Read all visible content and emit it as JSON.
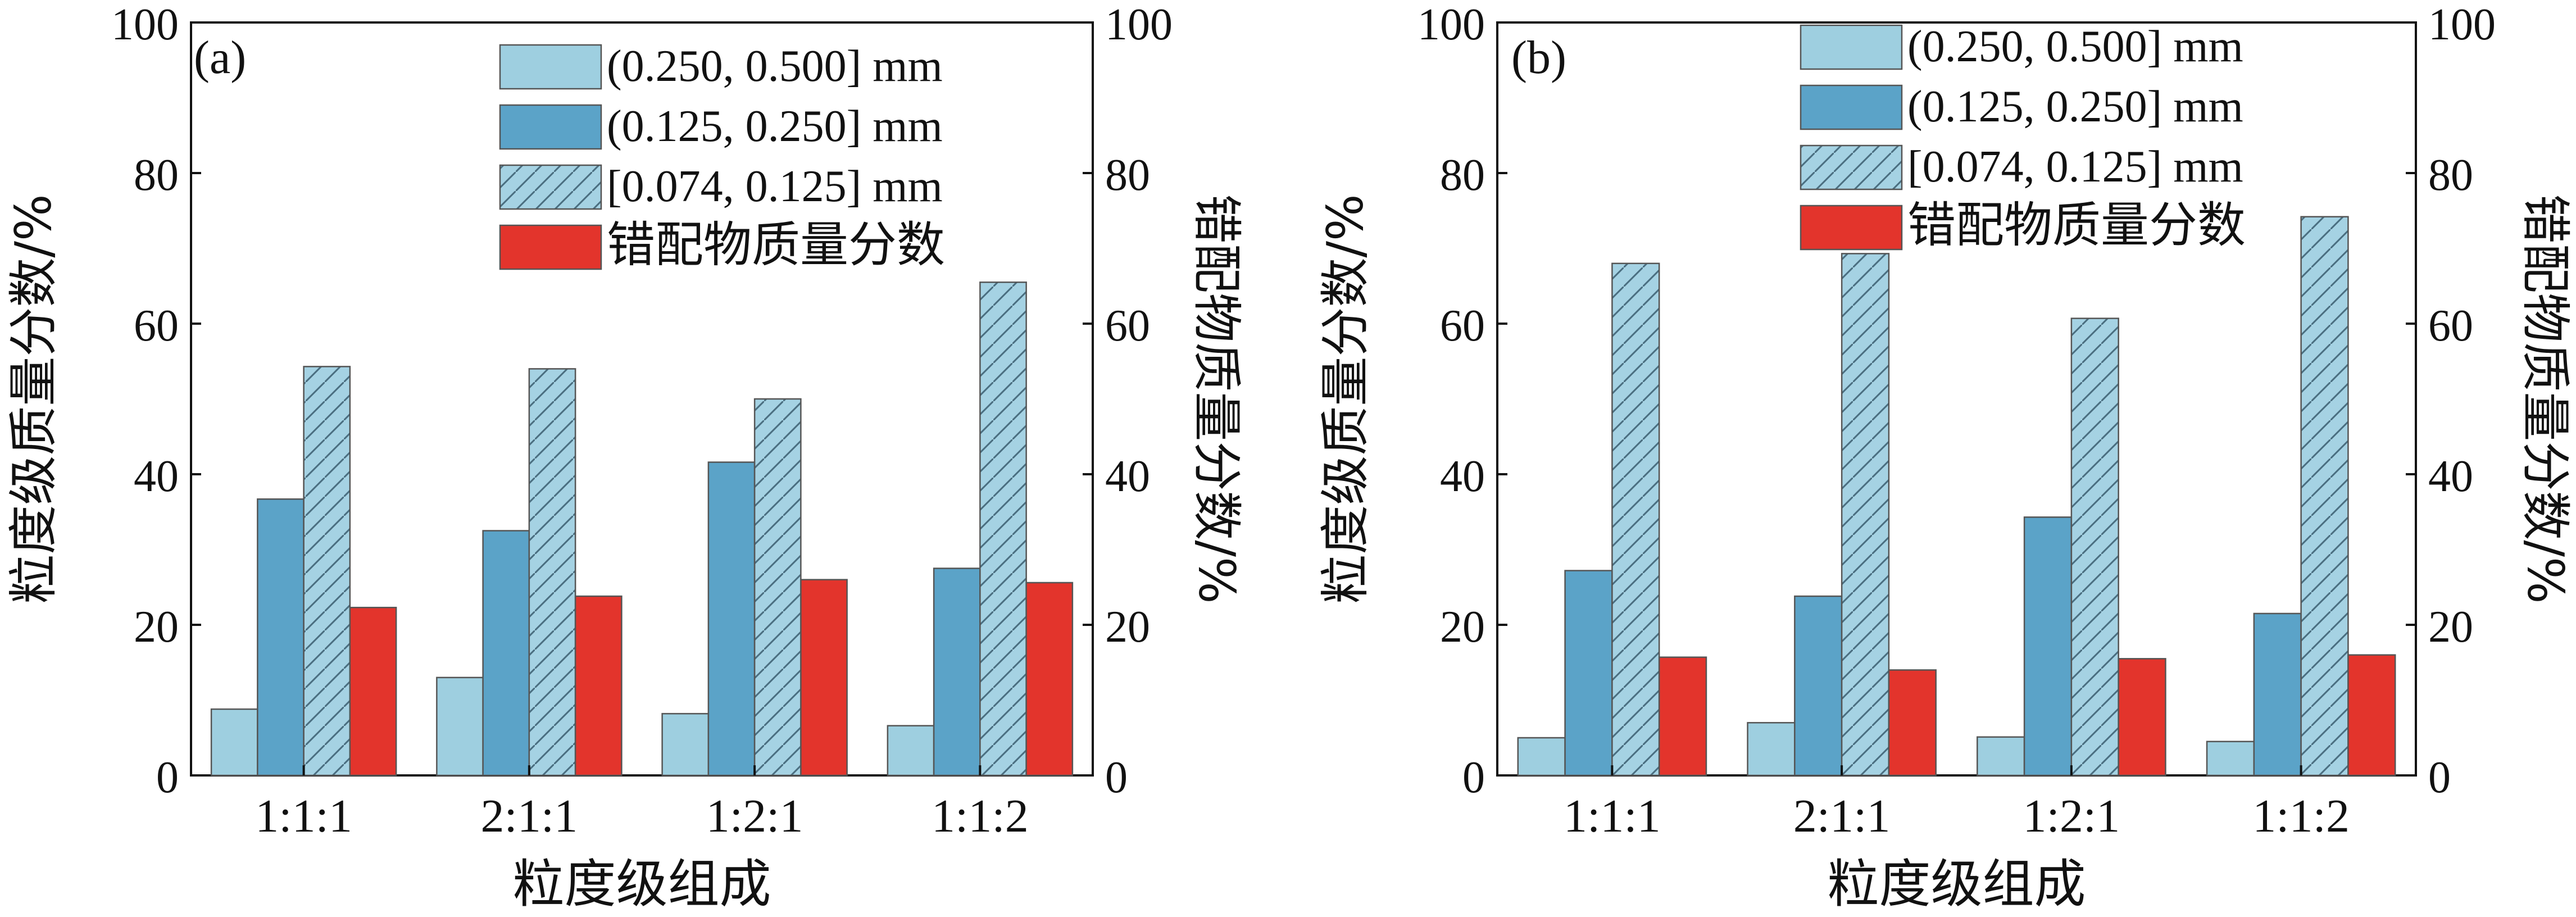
{
  "colors": {
    "light": "#9ecfe0",
    "medium": "#5ba3c8",
    "hatch_fill": "#a5d2e3",
    "red": "#e3342c",
    "stroke": "#555555",
    "axis": "#111111"
  },
  "chart_data": [
    {
      "type": "bar",
      "panel_label": "(a)",
      "categories": [
        "1:1:1",
        "2:1:1",
        "1:2:1",
        "1:1:2"
      ],
      "series": [
        {
          "name": "(0.250, 0.500] mm",
          "style": "light",
          "axis": "left",
          "values": [
            8.8,
            13.0,
            8.2,
            6.6
          ]
        },
        {
          "name": "(0.125, 0.250] mm",
          "style": "medium",
          "axis": "left",
          "values": [
            36.7,
            32.5,
            41.6,
            27.5
          ]
        },
        {
          "name": "[0.074, 0.125] mm",
          "style": "hatch",
          "axis": "left",
          "values": [
            54.3,
            54.0,
            50.0,
            65.5
          ]
        },
        {
          "name": "错配物质量分数",
          "style": "red",
          "axis": "right",
          "values": [
            22.3,
            23.8,
            26.0,
            25.6
          ]
        }
      ],
      "xlabel": "粒度级组成",
      "ylabel": "粒度级质量分数/%",
      "ylabel_right": "错配物质量分数/%",
      "ylim": [
        0,
        100
      ],
      "ylim_right": [
        0,
        100
      ],
      "yticks": [
        "0",
        "20",
        "40",
        "60",
        "80",
        "100"
      ],
      "legend_position": "top-right"
    },
    {
      "type": "bar",
      "panel_label": "(b)",
      "categories": [
        "1:1:1",
        "2:1:1",
        "1:2:1",
        "1:1:2"
      ],
      "series": [
        {
          "name": "(0.250, 0.500] mm",
          "style": "light",
          "axis": "left",
          "values": [
            5.0,
            7.0,
            5.1,
            4.5
          ]
        },
        {
          "name": "(0.125, 0.250] mm",
          "style": "medium",
          "axis": "left",
          "values": [
            27.2,
            23.8,
            34.3,
            21.5
          ]
        },
        {
          "name": "[0.074, 0.125] mm",
          "style": "hatch",
          "axis": "left",
          "values": [
            68.0,
            69.3,
            60.7,
            74.2
          ]
        },
        {
          "name": "错配物质量分数",
          "style": "red",
          "axis": "right",
          "values": [
            15.7,
            14.0,
            15.5,
            16.0
          ]
        }
      ],
      "xlabel": "粒度级组成",
      "ylabel": "粒度级质量分数/%",
      "ylabel_right": "错配物质量分数/%",
      "ylim": [
        0,
        100
      ],
      "ylim_right": [
        0,
        100
      ],
      "yticks": [
        "0",
        "20",
        "40",
        "60",
        "80",
        "100"
      ],
      "legend_position": "top-right"
    }
  ]
}
